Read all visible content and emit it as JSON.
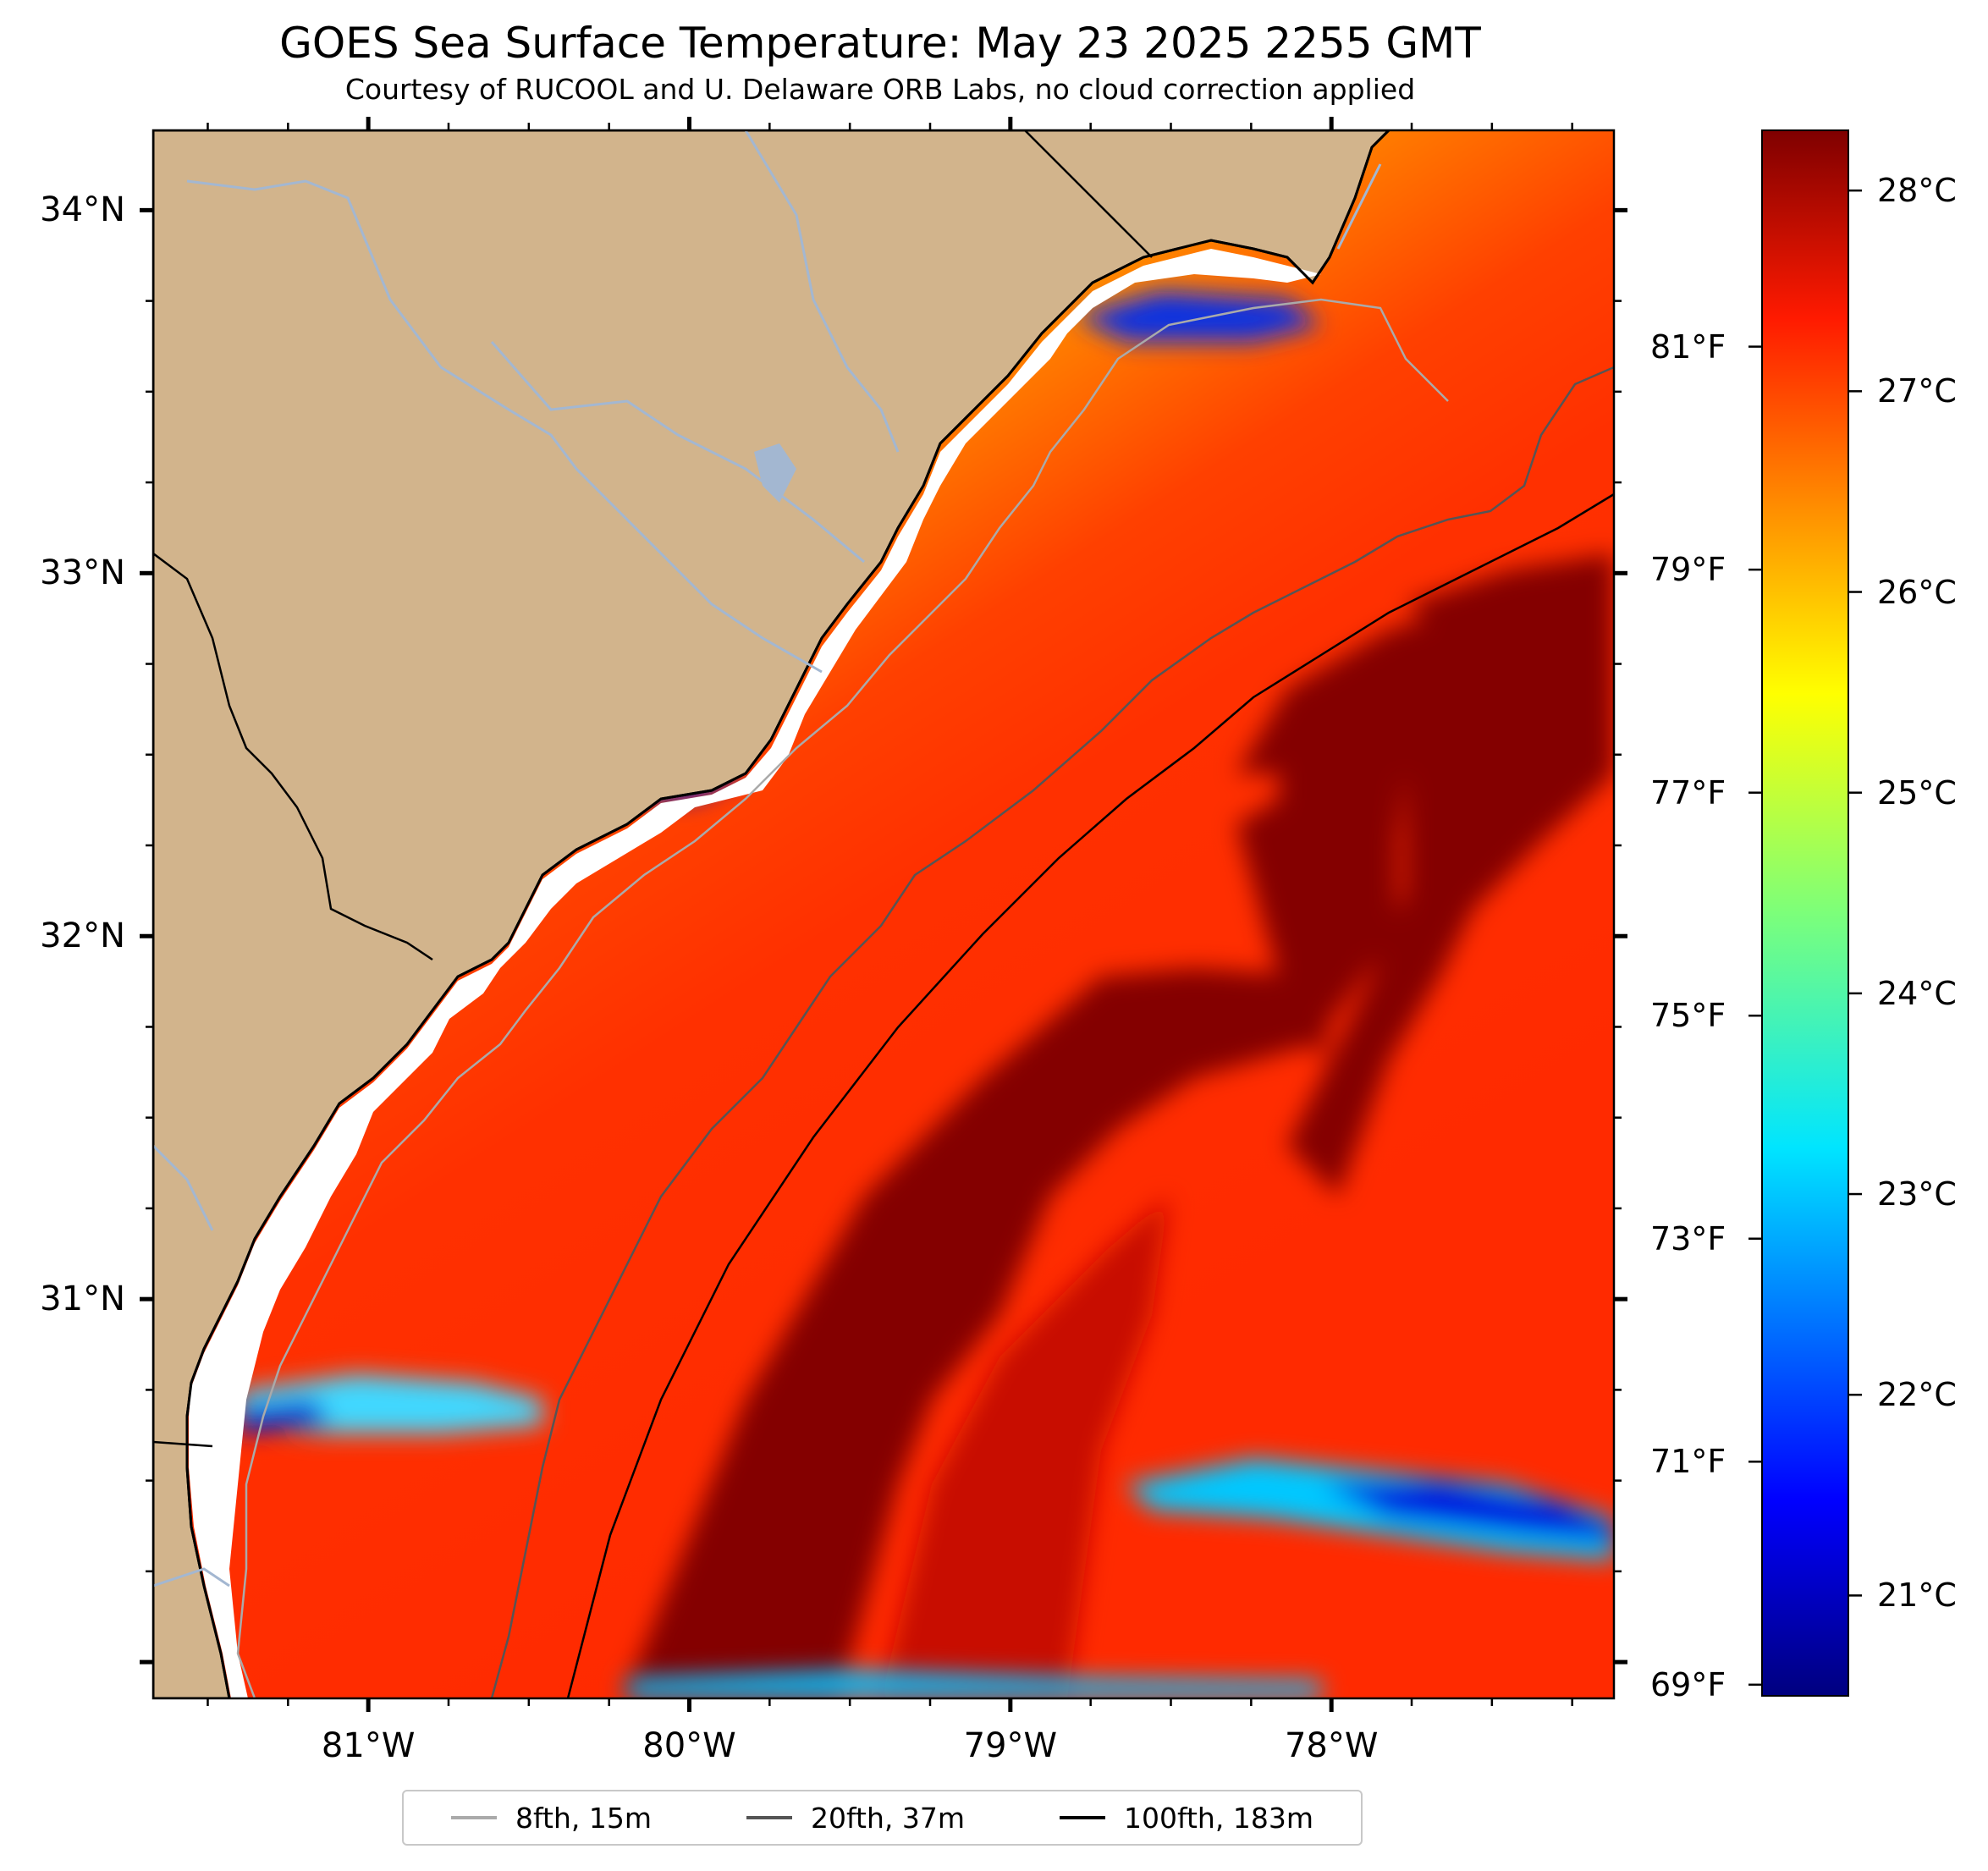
{
  "title": "GOES Sea Surface Temperature: May 23 2025 2255 GMT",
  "subtitle": "Courtesy of RUCOOL and U. Delaware ORB Labs, no cloud correction applied",
  "colors": {
    "land": "#d2b48c",
    "river": "#a3b7d1",
    "isobath_8": "#aaaaaa",
    "isobath_20": "#555555",
    "isobath_100": "#000000",
    "coast": "#000000",
    "colormap": "jet"
  },
  "map": {
    "projection": "equirectangular",
    "lon_range": [
      -81.67,
      -77.12
    ],
    "lat_range": [
      29.9,
      34.22
    ],
    "lat_ticks": [
      {
        "value": 34,
        "label": "34°N"
      },
      {
        "value": 33,
        "label": "33°N"
      },
      {
        "value": 32,
        "label": "32°N"
      },
      {
        "value": 31,
        "label": "31°N"
      }
    ],
    "lon_ticks": [
      {
        "value": -81,
        "label": "81°W"
      },
      {
        "value": -80,
        "label": "80°W"
      },
      {
        "value": -79,
        "label": "79°W"
      },
      {
        "value": -78,
        "label": "78°W"
      }
    ]
  },
  "colorbar": {
    "min_c": 20.5,
    "max_c": 28.3,
    "celsius_ticks": [
      {
        "value": 28,
        "label": "28°C"
      },
      {
        "value": 27,
        "label": "27°C"
      },
      {
        "value": 26,
        "label": "26°C"
      },
      {
        "value": 25,
        "label": "25°C"
      },
      {
        "value": 24,
        "label": "24°C"
      },
      {
        "value": 23,
        "label": "23°C"
      },
      {
        "value": 22,
        "label": "22°C"
      },
      {
        "value": 21,
        "label": "21°C"
      }
    ],
    "fahrenheit_ticks": [
      {
        "value": 81,
        "label": "81°F"
      },
      {
        "value": 79,
        "label": "79°F"
      },
      {
        "value": 77,
        "label": "77°F"
      },
      {
        "value": 75,
        "label": "75°F"
      },
      {
        "value": 73,
        "label": "73°F"
      },
      {
        "value": 71,
        "label": "71°F"
      },
      {
        "value": 69,
        "label": "69°F"
      }
    ]
  },
  "legend": [
    {
      "label": "8fth, 15m",
      "color": "#aaaaaa"
    },
    {
      "label": "20fth, 37m",
      "color": "#555555"
    },
    {
      "label": "100fth, 183m",
      "color": "#000000"
    }
  ]
}
